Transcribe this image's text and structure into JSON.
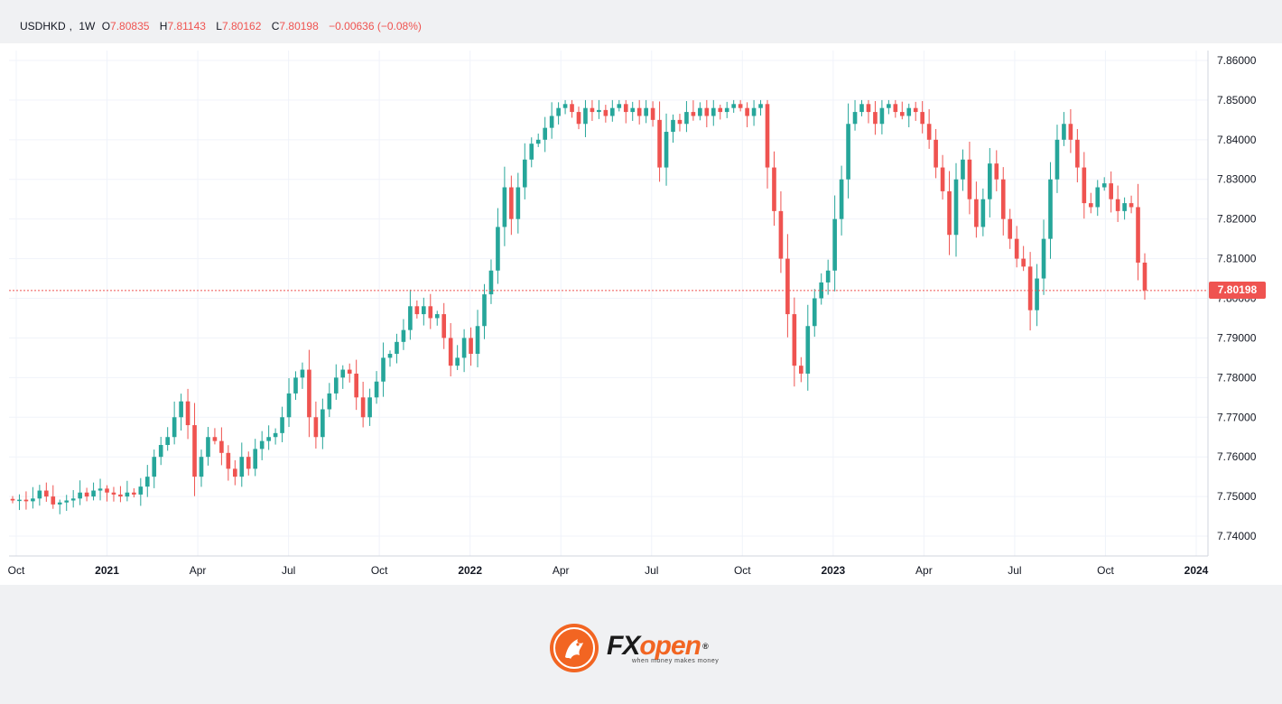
{
  "legend": {
    "symbol": "USDHKD",
    "interval": "1W",
    "open_label": "O",
    "open": "7.80835",
    "high_label": "H",
    "high": "7.81143",
    "low_label": "L",
    "low": "7.80162",
    "close_label": "C",
    "close": "7.80198",
    "change": "−0.00636 (−0.08%)"
  },
  "last_price": "7.80198",
  "brand": {
    "word_fx": "FX",
    "word_open": "open",
    "registered": "®",
    "tagline": "when money makes money"
  },
  "colors": {
    "up": "#26a69a",
    "down": "#ef5350",
    "grid": "#f0f3fa",
    "brand_orange": "#f26522"
  },
  "chart_data": {
    "type": "candlestick",
    "symbol": "USDHKD",
    "interval": "1W",
    "ylim": [
      7.735,
      7.8625
    ],
    "y_ticks": [
      7.74,
      7.75,
      7.76,
      7.77,
      7.78,
      7.79,
      7.8,
      7.81,
      7.82,
      7.83,
      7.84,
      7.85,
      7.86
    ],
    "x_ticks": [
      {
        "label": "Oct",
        "year": false
      },
      {
        "label": "2021",
        "year": true
      },
      {
        "label": "Apr",
        "year": false
      },
      {
        "label": "Jul",
        "year": false
      },
      {
        "label": "Oct",
        "year": false
      },
      {
        "label": "2022",
        "year": true
      },
      {
        "label": "Apr",
        "year": false
      },
      {
        "label": "Jul",
        "year": false
      },
      {
        "label": "Oct",
        "year": false
      },
      {
        "label": "2023",
        "year": true
      },
      {
        "label": "Apr",
        "year": false
      },
      {
        "label": "Jul",
        "year": false
      },
      {
        "label": "Oct",
        "year": false
      },
      {
        "label": "2024",
        "year": true
      }
    ],
    "last_close": 7.80198,
    "grid": true,
    "close_path": [
      7.749,
      7.7492,
      7.7488,
      7.7495,
      7.7515,
      7.75,
      7.748,
      7.7485,
      7.749,
      7.7495,
      7.751,
      7.75,
      7.7515,
      7.752,
      7.751,
      7.7505,
      7.75,
      7.751,
      7.7505,
      7.7525,
      7.755,
      7.76,
      7.763,
      7.765,
      7.77,
      7.774,
      7.768,
      7.755,
      7.76,
      7.765,
      7.764,
      7.761,
      7.757,
      7.755,
      7.76,
      7.757,
      7.762,
      7.764,
      7.765,
      7.766,
      7.77,
      7.776,
      7.78,
      7.782,
      7.77,
      7.765,
      7.772,
      7.776,
      7.78,
      7.782,
      7.781,
      7.775,
      7.77,
      7.775,
      7.779,
      7.785,
      7.786,
      7.789,
      7.792,
      7.798,
      7.796,
      7.798,
      7.795,
      7.796,
      7.79,
      7.783,
      7.785,
      7.79,
      7.786,
      7.793,
      7.801,
      7.807,
      7.818,
      7.828,
      7.82,
      7.828,
      7.835,
      7.839,
      7.84,
      7.843,
      7.846,
      7.848,
      7.849,
      7.847,
      7.844,
      7.848,
      7.847,
      7.8475,
      7.846,
      7.848,
      7.849,
      7.847,
      7.848,
      7.846,
      7.848,
      7.845,
      7.833,
      7.842,
      7.845,
      7.844,
      7.847,
      7.846,
      7.848,
      7.846,
      7.848,
      7.847,
      7.848,
      7.849,
      7.848,
      7.846,
      7.848,
      7.849,
      7.833,
      7.822,
      7.81,
      7.796,
      7.783,
      7.781,
      7.793,
      7.8,
      7.804,
      7.807,
      7.82,
      7.83,
      7.844,
      7.847,
      7.849,
      7.847,
      7.844,
      7.848,
      7.849,
      7.847,
      7.846,
      7.848,
      7.847,
      7.844,
      7.84,
      7.833,
      7.827,
      7.816,
      7.83,
      7.835,
      7.825,
      7.818,
      7.825,
      7.834,
      7.83,
      7.82,
      7.815,
      7.81,
      7.808,
      7.797,
      7.805,
      7.815,
      7.83,
      7.84,
      7.844,
      7.84,
      7.833,
      7.824,
      7.823,
      7.828,
      7.829,
      7.825,
      7.822,
      7.824,
      7.823,
      7.809,
      7.802
    ]
  }
}
